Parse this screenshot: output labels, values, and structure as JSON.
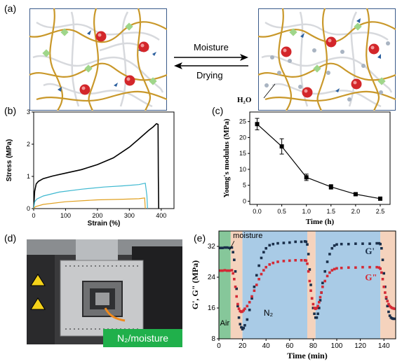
{
  "panels": {
    "a": {
      "label": "(a)",
      "forward_label": "Moisture",
      "reverse_label": "Drying",
      "water_label": "H₂O",
      "colors": {
        "chain": "#c9982a",
        "background_chain": "#d7d9dd",
        "crosslink": "#9fd68a",
        "ion": "#d3262a",
        "anion": "#2b5f9e",
        "water": "#a9b4c2"
      }
    },
    "b": {
      "label": "(b)",
      "chart_data": {
        "type": "line",
        "xlabel": "Strain (%)",
        "ylabel": "Stress (MPa)",
        "xlim": [
          0,
          440
        ],
        "ylim": [
          0,
          3
        ],
        "xticks": [
          0,
          100,
          200,
          300,
          400
        ],
        "yticks": [
          0,
          1,
          2,
          3
        ],
        "series": [
          {
            "color": "#000000",
            "x": [
              0,
              3,
              8,
              15,
              30,
              60,
              100,
              150,
              200,
              250,
              300,
              330,
              360,
              375,
              385,
              390,
              391,
              392
            ],
            "y": [
              0,
              0.55,
              0.78,
              0.85,
              0.92,
              1.0,
              1.1,
              1.22,
              1.38,
              1.58,
              1.9,
              2.15,
              2.42,
              2.55,
              2.65,
              2.62,
              1.0,
              0
            ]
          },
          {
            "color": "#3db8d0",
            "x": [
              0,
              3,
              10,
              30,
              80,
              150,
              220,
              280,
              330,
              350,
              355,
              357
            ],
            "y": [
              0,
              0.22,
              0.3,
              0.38,
              0.5,
              0.6,
              0.68,
              0.72,
              0.75,
              0.78,
              0.4,
              0
            ]
          },
          {
            "color": "#e0a020",
            "x": [
              0,
              5,
              30,
              100,
              200,
              280,
              330,
              348,
              350
            ],
            "y": [
              0,
              0.06,
              0.12,
              0.2,
              0.27,
              0.3,
              0.32,
              0.33,
              0
            ]
          }
        ]
      }
    },
    "c": {
      "label": "(c)",
      "chart_data": {
        "type": "line",
        "xlabel": "Time (h)",
        "ylabel": "Young's modulus (MPa)",
        "xlim": [
          -0.15,
          2.7
        ],
        "ylim": [
          -1,
          28
        ],
        "xticks": [
          "0.0",
          "0.5",
          "1.0",
          "1.5",
          "2.0",
          "2.5"
        ],
        "yticks": [
          0,
          5,
          10,
          15,
          20,
          25
        ],
        "series": [
          {
            "color": "#000000",
            "x": [
              0.0,
              0.5,
              1.0,
              1.5,
              2.0,
              2.5
            ],
            "y": [
              24.2,
              17.2,
              7.5,
              4.5,
              2.2,
              0.8
            ],
            "error": [
              1.8,
              2.4,
              1.0,
              0.7,
              0.4,
              0.3
            ]
          }
        ]
      }
    },
    "d": {
      "label": "(d)",
      "caption": "N₂/moisture",
      "colors": {
        "caption_bg": "#20b04b",
        "arrow": "#f08a1c"
      }
    },
    "e": {
      "label": "(e)",
      "annotations": {
        "air": "Air",
        "moisture": "moisture",
        "n2": "N₂",
        "g1": "G'",
        "g2": "G\""
      },
      "bands": [
        {
          "from": 0,
          "to": 10,
          "color": "#86c79a"
        },
        {
          "from": 10,
          "to": 20,
          "color": "#f5d3bd"
        },
        {
          "from": 20,
          "to": 75,
          "color": "#a9cbe6"
        },
        {
          "from": 75,
          "to": 82,
          "color": "#f5d3bd"
        },
        {
          "from": 82,
          "to": 137,
          "color": "#a9cbe6"
        },
        {
          "from": 137,
          "to": 150,
          "color": "#f5d3bd"
        }
      ],
      "chart_data": {
        "type": "scatter",
        "xlabel": "Time (min)",
        "ylabel": "G', G\" (MPa)",
        "xlim": [
          0,
          150
        ],
        "ylim": [
          8,
          36
        ],
        "xticks": [
          0,
          20,
          40,
          60,
          80,
          100,
          120,
          140
        ],
        "yticks": [
          8,
          16,
          24,
          32
        ],
        "series": [
          {
            "name": "G'",
            "color": "#1a2f4a",
            "x": [
              1,
              3,
              5,
              7,
              9,
              11,
              12,
              13,
              14,
              15,
              16,
              17,
              18,
              19,
              20,
              21,
              22,
              24,
              26,
              28,
              30,
              32,
              34,
              36,
              38,
              40,
              43,
              46,
              50,
              55,
              60,
              65,
              70,
              73,
              74,
              75,
              76,
              77,
              78,
              79,
              80,
              81,
              82,
              83,
              84,
              85,
              86,
              87,
              88,
              90,
              92,
              94,
              96,
              98,
              100,
              104,
              110,
              116,
              122,
              128,
              134,
              136,
              137,
              138,
              139,
              140,
              141,
              142,
              143,
              144,
              145,
              146,
              147,
              148,
              149
            ],
            "y": [
              31.6,
              31.6,
              31.7,
              31.7,
              31.6,
              31.7,
              30.5,
              28.5,
              25.5,
              21,
              16.5,
              13.5,
              11.8,
              11,
              10.5,
              10.8,
              11.5,
              13,
              15.5,
              18.5,
              21.5,
              24.5,
              27,
              29,
              30.5,
              31.5,
              32.3,
              32.6,
              32.8,
              32.9,
              33,
              33.2,
              33.2,
              33.3,
              33.2,
              32.5,
              30,
              26,
              22,
              18.5,
              16,
              14.5,
              13.5,
              13.5,
              14.5,
              16,
              18,
              20,
              22.5,
              25.5,
              28,
              30,
              31.5,
              32.2,
              32.5,
              32.6,
              32.6,
              32.7,
              32.7,
              32.7,
              32.8,
              32.8,
              32.6,
              31.5,
              28.5,
              25,
              21.5,
              18.5,
              16.5,
              15,
              14,
              13.5,
              13.3,
              13.2,
              13.2
            ]
          },
          {
            "name": "G\"",
            "color": "#d42a35",
            "x": [
              1,
              3,
              5,
              7,
              9,
              11,
              12,
              13,
              14,
              15,
              16,
              17,
              18,
              19,
              20,
              21,
              22,
              24,
              26,
              28,
              30,
              32,
              34,
              36,
              38,
              40,
              43,
              46,
              50,
              55,
              60,
              65,
              70,
              73,
              74,
              75,
              76,
              77,
              78,
              79,
              80,
              81,
              82,
              83,
              84,
              85,
              86,
              87,
              88,
              90,
              92,
              94,
              96,
              98,
              100,
              104,
              110,
              116,
              122,
              128,
              134,
              136,
              137,
              138,
              139,
              140,
              141,
              142,
              143,
              144,
              145,
              146,
              147,
              148,
              149
            ],
            "y": [
              25.7,
              25.7,
              25.8,
              25.7,
              25.7,
              25.8,
              25,
              23.5,
              21.5,
              19,
              17,
              15.8,
              15.2,
              15,
              15.1,
              15.4,
              15.8,
              16.5,
              17.5,
              19,
              20.5,
              22,
              23.5,
              24.8,
              25.8,
              26.6,
              27.3,
              27.7,
              28,
              28.2,
              28.3,
              28.4,
              28.4,
              28.4,
              28.3,
              27.5,
              25.5,
              23,
              20.5,
              18.5,
              17,
              16,
              15.8,
              16,
              16.5,
              17.5,
              18.8,
              20,
              21.5,
              23,
              24.3,
              25.2,
              25.8,
              26.1,
              26.3,
              26.4,
              26.5,
              26.5,
              26.6,
              26.6,
              26.6,
              26.5,
              26.2,
              25.2,
              23.5,
              21.5,
              20,
              18.8,
              17.8,
              17,
              16.5,
              16.2,
              16,
              15.9,
              15.8
            ]
          }
        ]
      }
    }
  }
}
